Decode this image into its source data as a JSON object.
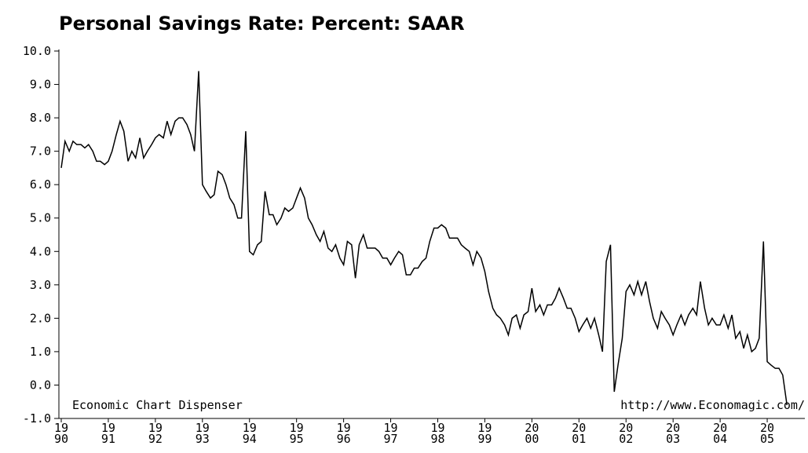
{
  "chart_data": {
    "type": "line",
    "title": "Personal Savings Rate: Percent: SAAR",
    "annotations": [
      "Economic Chart Dispenser",
      "http://www.Economagic.com/"
    ],
    "color": "#000000",
    "xlim": [
      1989.95,
      2005.8
    ],
    "ylim": [
      -1,
      10
    ],
    "yticks": [
      {
        "value": 10,
        "label": "10.0"
      },
      {
        "value": 9,
        "label": "9.0"
      },
      {
        "value": 8,
        "label": "8.0"
      },
      {
        "value": 7,
        "label": "7.0"
      },
      {
        "value": 6,
        "label": "6.0"
      },
      {
        "value": 5,
        "label": "5.0"
      },
      {
        "value": 4,
        "label": "4.0"
      },
      {
        "value": 3,
        "label": "3.0"
      },
      {
        "value": 2,
        "label": "2.0"
      },
      {
        "value": 1,
        "label": "1.0"
      },
      {
        "value": 0,
        "label": "0.0"
      },
      {
        "value": -1,
        "label": "-1.0"
      }
    ],
    "xticks": [
      {
        "value": 1990,
        "label": [
          "19",
          "90"
        ]
      },
      {
        "value": 1991,
        "label": [
          "19",
          "91"
        ]
      },
      {
        "value": 1992,
        "label": [
          "19",
          "92"
        ]
      },
      {
        "value": 1993,
        "label": [
          "19",
          "93"
        ]
      },
      {
        "value": 1994,
        "label": [
          "19",
          "94"
        ]
      },
      {
        "value": 1995,
        "label": [
          "19",
          "95"
        ]
      },
      {
        "value": 1996,
        "label": [
          "19",
          "96"
        ]
      },
      {
        "value": 1997,
        "label": [
          "19",
          "97"
        ]
      },
      {
        "value": 1998,
        "label": [
          "19",
          "98"
        ]
      },
      {
        "value": 1999,
        "label": [
          "19",
          "99"
        ]
      },
      {
        "value": 2000,
        "label": [
          "20",
          "00"
        ]
      },
      {
        "value": 2001,
        "label": [
          "20",
          "01"
        ]
      },
      {
        "value": 2002,
        "label": [
          "20",
          "02"
        ]
      },
      {
        "value": 2003,
        "label": [
          "20",
          "03"
        ]
      },
      {
        "value": 2004,
        "label": [
          "20",
          "04"
        ]
      },
      {
        "value": 2005,
        "label": [
          "20",
          "05"
        ]
      }
    ],
    "x": [
      1990.0,
      1990.08,
      1990.17,
      1990.25,
      1990.33,
      1990.42,
      1990.5,
      1990.58,
      1990.67,
      1990.75,
      1990.83,
      1990.92,
      1991.0,
      1991.08,
      1991.17,
      1991.25,
      1991.33,
      1991.42,
      1991.5,
      1991.58,
      1991.67,
      1991.75,
      1991.83,
      1991.92,
      1992.0,
      1992.08,
      1992.17,
      1992.25,
      1992.33,
      1992.42,
      1992.5,
      1992.58,
      1992.67,
      1992.75,
      1992.83,
      1992.92,
      1993.0,
      1993.08,
      1993.17,
      1993.25,
      1993.33,
      1993.42,
      1993.5,
      1993.58,
      1993.67,
      1993.75,
      1993.83,
      1993.92,
      1994.0,
      1994.08,
      1994.17,
      1994.25,
      1994.33,
      1994.42,
      1994.5,
      1994.58,
      1994.67,
      1994.75,
      1994.83,
      1994.92,
      1995.0,
      1995.08,
      1995.17,
      1995.25,
      1995.33,
      1995.42,
      1995.5,
      1995.58,
      1995.67,
      1995.75,
      1995.83,
      1995.92,
      1996.0,
      1996.08,
      1996.17,
      1996.25,
      1996.33,
      1996.42,
      1996.5,
      1996.58,
      1996.67,
      1996.75,
      1996.83,
      1996.92,
      1997.0,
      1997.08,
      1997.17,
      1997.25,
      1997.33,
      1997.42,
      1997.5,
      1997.58,
      1997.67,
      1997.75,
      1997.83,
      1997.92,
      1998.0,
      1998.08,
      1998.17,
      1998.25,
      1998.33,
      1998.42,
      1998.5,
      1998.58,
      1998.67,
      1998.75,
      1998.83,
      1998.92,
      1999.0,
      1999.08,
      1999.17,
      1999.25,
      1999.33,
      1999.42,
      1999.5,
      1999.58,
      1999.67,
      1999.75,
      1999.83,
      1999.92,
      2000.0,
      2000.08,
      2000.17,
      2000.25,
      2000.33,
      2000.42,
      2000.5,
      2000.58,
      2000.67,
      2000.75,
      2000.83,
      2000.92,
      2001.0,
      2001.08,
      2001.17,
      2001.25,
      2001.33,
      2001.42,
      2001.5,
      2001.58,
      2001.67,
      2001.75,
      2001.83,
      2001.92,
      2002.0,
      2002.08,
      2002.17,
      2002.25,
      2002.33,
      2002.42,
      2002.5,
      2002.58,
      2002.67,
      2002.75,
      2002.83,
      2002.92,
      2003.0,
      2003.08,
      2003.17,
      2003.25,
      2003.33,
      2003.42,
      2003.5,
      2003.58,
      2003.67,
      2003.75,
      2003.83,
      2003.92,
      2004.0,
      2004.08,
      2004.17,
      2004.25,
      2004.33,
      2004.42,
      2004.5,
      2004.58,
      2004.67,
      2004.75,
      2004.83,
      2004.92,
      2005.0,
      2005.08,
      2005.17,
      2005.25,
      2005.33,
      2005.42
    ],
    "values": [
      6.5,
      7.3,
      7.0,
      7.3,
      7.2,
      7.2,
      7.1,
      7.2,
      7.0,
      6.7,
      6.7,
      6.6,
      6.7,
      7.0,
      7.5,
      7.9,
      7.6,
      6.7,
      7.0,
      6.8,
      7.4,
      6.8,
      7.0,
      7.2,
      7.4,
      7.5,
      7.4,
      7.9,
      7.5,
      7.9,
      8.0,
      8.0,
      7.8,
      7.5,
      7.0,
      9.4,
      6.0,
      5.8,
      5.6,
      5.7,
      6.4,
      6.3,
      6.0,
      5.6,
      5.4,
      5.0,
      5.0,
      7.6,
      4.0,
      3.9,
      4.2,
      4.3,
      5.8,
      5.1,
      5.1,
      4.8,
      5.0,
      5.3,
      5.2,
      5.3,
      5.6,
      5.9,
      5.6,
      5.0,
      4.8,
      4.5,
      4.3,
      4.6,
      4.1,
      4.0,
      4.2,
      3.8,
      3.6,
      4.3,
      4.2,
      3.2,
      4.2,
      4.5,
      4.1,
      4.1,
      4.1,
      4.0,
      3.8,
      3.8,
      3.6,
      3.8,
      4.0,
      3.9,
      3.3,
      3.3,
      3.5,
      3.5,
      3.7,
      3.8,
      4.3,
      4.7,
      4.7,
      4.8,
      4.7,
      4.4,
      4.4,
      4.4,
      4.2,
      4.1,
      4.0,
      3.6,
      4.0,
      3.8,
      3.4,
      2.8,
      2.3,
      2.1,
      2.0,
      1.8,
      1.5,
      2.0,
      2.1,
      1.7,
      2.1,
      2.2,
      2.9,
      2.2,
      2.4,
      2.1,
      2.4,
      2.4,
      2.6,
      2.9,
      2.6,
      2.3,
      2.3,
      2.0,
      1.6,
      1.8,
      2.0,
      1.7,
      2.0,
      1.5,
      1.0,
      3.7,
      4.2,
      -0.2,
      0.6,
      1.4,
      2.8,
      3.0,
      2.7,
      3.1,
      2.7,
      3.1,
      2.5,
      2.0,
      1.7,
      2.2,
      2.0,
      1.8,
      1.5,
      1.8,
      2.1,
      1.8,
      2.1,
      2.3,
      2.1,
      3.1,
      2.3,
      1.8,
      2.0,
      1.8,
      1.8,
      2.1,
      1.7,
      2.1,
      1.4,
      1.6,
      1.1,
      1.5,
      1.0,
      1.1,
      1.4,
      4.3,
      0.7,
      0.6,
      0.5,
      0.5,
      0.3,
      -0.6
    ]
  }
}
